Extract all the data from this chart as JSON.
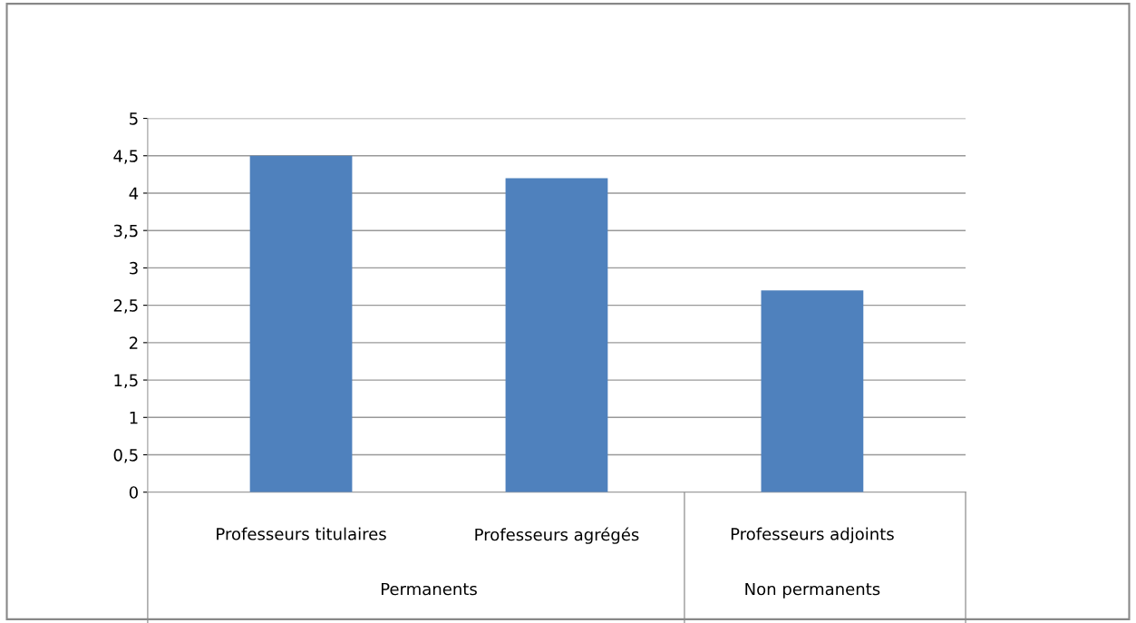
{
  "chart_data": {
    "type": "bar",
    "categories": [
      "Professeurs titulaires",
      "Professeurs agrégés",
      "Professeurs adjoints"
    ],
    "values": [
      4.5,
      4.2,
      2.7
    ],
    "color": "#4f81bd",
    "ylim": [
      0,
      5
    ],
    "yticks": [
      0,
      {
        "value": 0.5,
        "label": "0,5"
      },
      1,
      {
        "value": 1.5,
        "label": "1,5"
      },
      2,
      {
        "value": 2.5,
        "label": "2,5"
      },
      3,
      {
        "value": 3.5,
        "label": "3,5"
      },
      4,
      {
        "value": 4.5,
        "label": "4,5"
      },
      5
    ],
    "grid": "y",
    "annotations": [
      "Permanents",
      "Non permanents"
    ]
  }
}
